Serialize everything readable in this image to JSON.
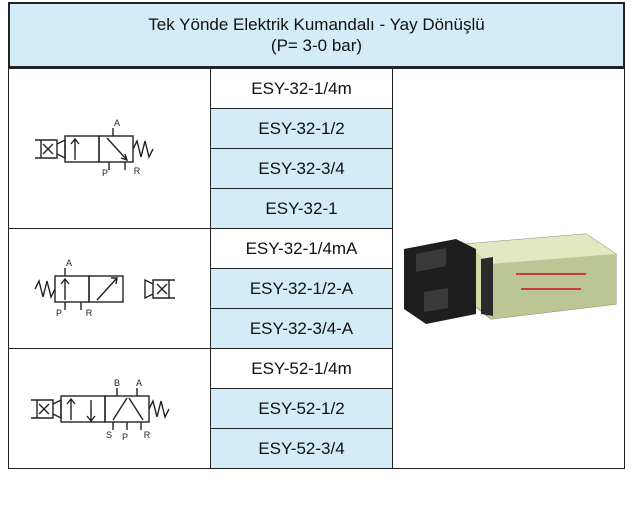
{
  "header": {
    "title": "Tek Yönde Elektrik Kumandalı - Yay Dönüşlü",
    "subtitle": "(P= 3-0 bar)"
  },
  "groups": [
    {
      "symbol_labels": [
        "A",
        "P",
        "R"
      ],
      "models": [
        "ESY-32-1/4m",
        "ESY-32-1/2",
        "ESY-32-3/4",
        "ESY-32-1"
      ]
    },
    {
      "symbol_labels": [
        "A",
        "P",
        "R"
      ],
      "models": [
        "ESY-32-1/4mA",
        "ESY-32-1/2-A",
        "ESY-32-3/4-A"
      ]
    },
    {
      "symbol_labels": [
        "B",
        "A",
        "S",
        "P",
        "R"
      ],
      "models": [
        "ESY-52-1/4m",
        "ESY-52-1/2",
        "ESY-52-3/4"
      ]
    }
  ]
}
